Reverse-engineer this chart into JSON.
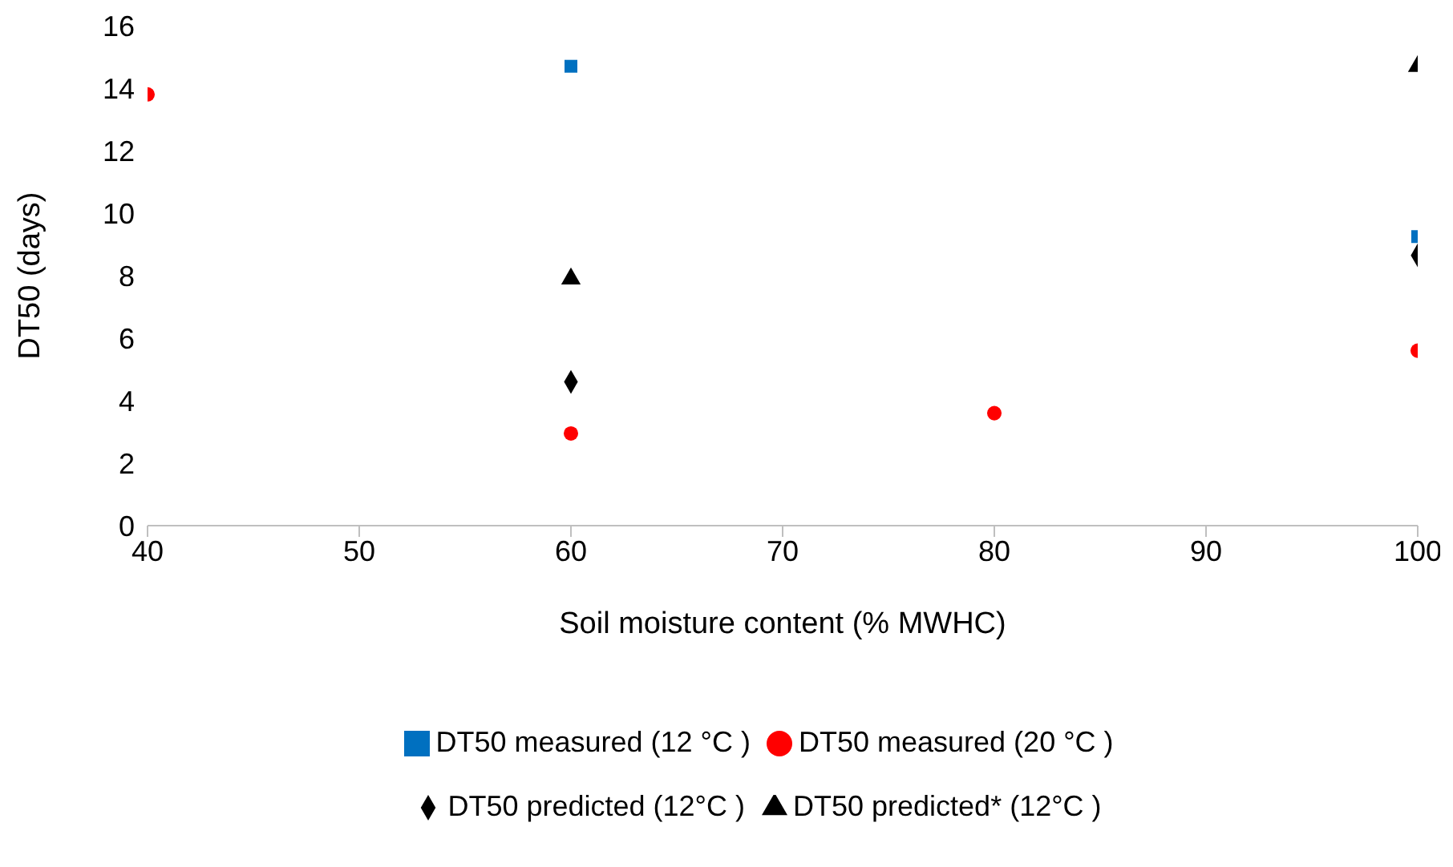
{
  "chart_data": {
    "type": "scatter",
    "xlabel": "Soil moisture content (% MWHC)",
    "ylabel": "DT50 (days)",
    "xlim": [
      40,
      100
    ],
    "xticks": [
      40,
      50,
      60,
      70,
      80,
      90,
      100
    ],
    "ylim": [
      0,
      16
    ],
    "yticks": [
      0,
      2,
      4,
      6,
      8,
      10,
      12,
      14,
      16
    ],
    "grid": false,
    "legend": "bottom",
    "series": [
      {
        "name": "DT50 measured (20 °C )",
        "color": "#ff0000",
        "marker": "circle",
        "x": [
          40,
          60,
          80,
          100
        ],
        "values": [
          13.8,
          2.95,
          3.6,
          5.6
        ]
      },
      {
        "name": "DT50 measured (12 °C )",
        "color": "#0070c0",
        "marker": "square",
        "x": [
          60,
          100
        ],
        "values": [
          14.7,
          9.25
        ]
      },
      {
        "name": "DT50 predicted (12°C )",
        "color": "#000000",
        "marker": "diamond",
        "x": [
          60,
          100
        ],
        "values": [
          4.6,
          8.65
        ]
      },
      {
        "name": "DT50 predicted* (12°C )",
        "color": "#000000",
        "marker": "triangle",
        "x": [
          60,
          100
        ],
        "values": [
          7.9,
          14.7
        ]
      }
    ]
  }
}
